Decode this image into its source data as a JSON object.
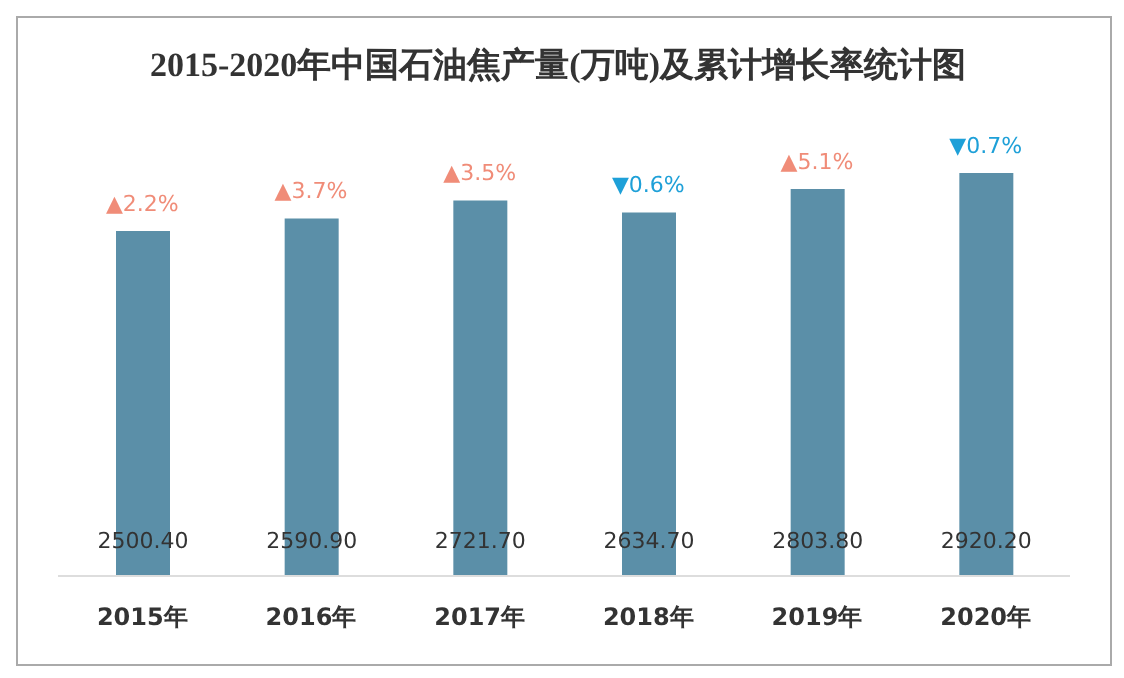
{
  "chart_data": {
    "type": "bar",
    "title": "2015-2020年中国石油焦产量(万吨)及累计增长率统计图",
    "categories": [
      "2015年",
      "2016年",
      "2017年",
      "2018年",
      "2019年",
      "2020年"
    ],
    "values": [
      2500.4,
      2590.9,
      2721.7,
      2634.7,
      2803.8,
      2920.2
    ],
    "value_labels": [
      "2500.40",
      "2590.90",
      "2721.70",
      "2634.70",
      "2803.80",
      "2920.20"
    ],
    "color": "#5b8fa8",
    "grid": false,
    "legend": false,
    "annotations": [
      {
        "text": "▲2.2%",
        "x": "2015年",
        "y": 2500.4
      },
      {
        "text": "▲3.7%",
        "x": "2016年",
        "y": 2590.9
      },
      {
        "text": "▲3.5%",
        "x": "2017年",
        "y": 2721.7
      },
      {
        "text": "▼0.6%",
        "x": "2018年",
        "y": 2634.7
      },
      {
        "text": "▲5.1%",
        "x": "2019年",
        "y": 2803.8
      },
      {
        "text": "▼0.7%",
        "x": "2020年",
        "y": 2920.2
      }
    ]
  }
}
